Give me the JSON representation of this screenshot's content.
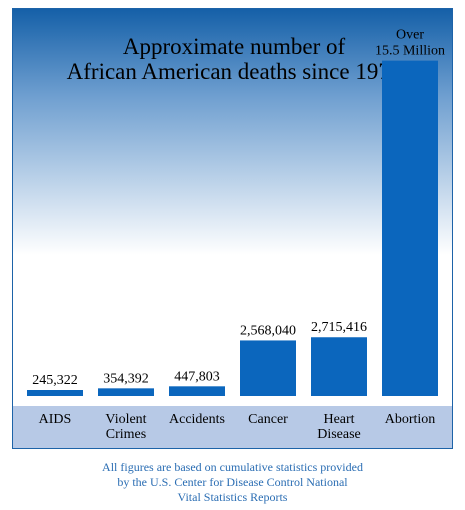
{
  "chart_data": {
    "type": "bar",
    "title_lines": [
      "Approximate number of",
      "African American deaths since 1973"
    ],
    "categories": [
      [
        "AIDS"
      ],
      [
        "Violent",
        "Crimes"
      ],
      [
        "Accidents"
      ],
      [
        "Cancer"
      ],
      [
        "Heart",
        "Disease"
      ],
      [
        "Abortion"
      ]
    ],
    "values": [
      245322,
      354392,
      447803,
      2568040,
      2715416,
      15500000
    ],
    "data_labels": [
      [
        "245,322"
      ],
      [
        "354,392"
      ],
      [
        "447,803"
      ],
      [
        "2,568,040"
      ],
      [
        "2,715,416"
      ],
      [
        "Over",
        "15.5 Million"
      ]
    ],
    "ylim": [
      0,
      16500000
    ],
    "bar_color": "#0b66bd",
    "band_color": "#b7c9e6",
    "background_gradient": [
      "#1560a8",
      "#ffffff"
    ]
  },
  "footnote_lines": [
    "All figures are based on cumulative statistics provided",
    "by the U.S. Center for Disease Control National",
    "Vital Statistics Reports"
  ]
}
